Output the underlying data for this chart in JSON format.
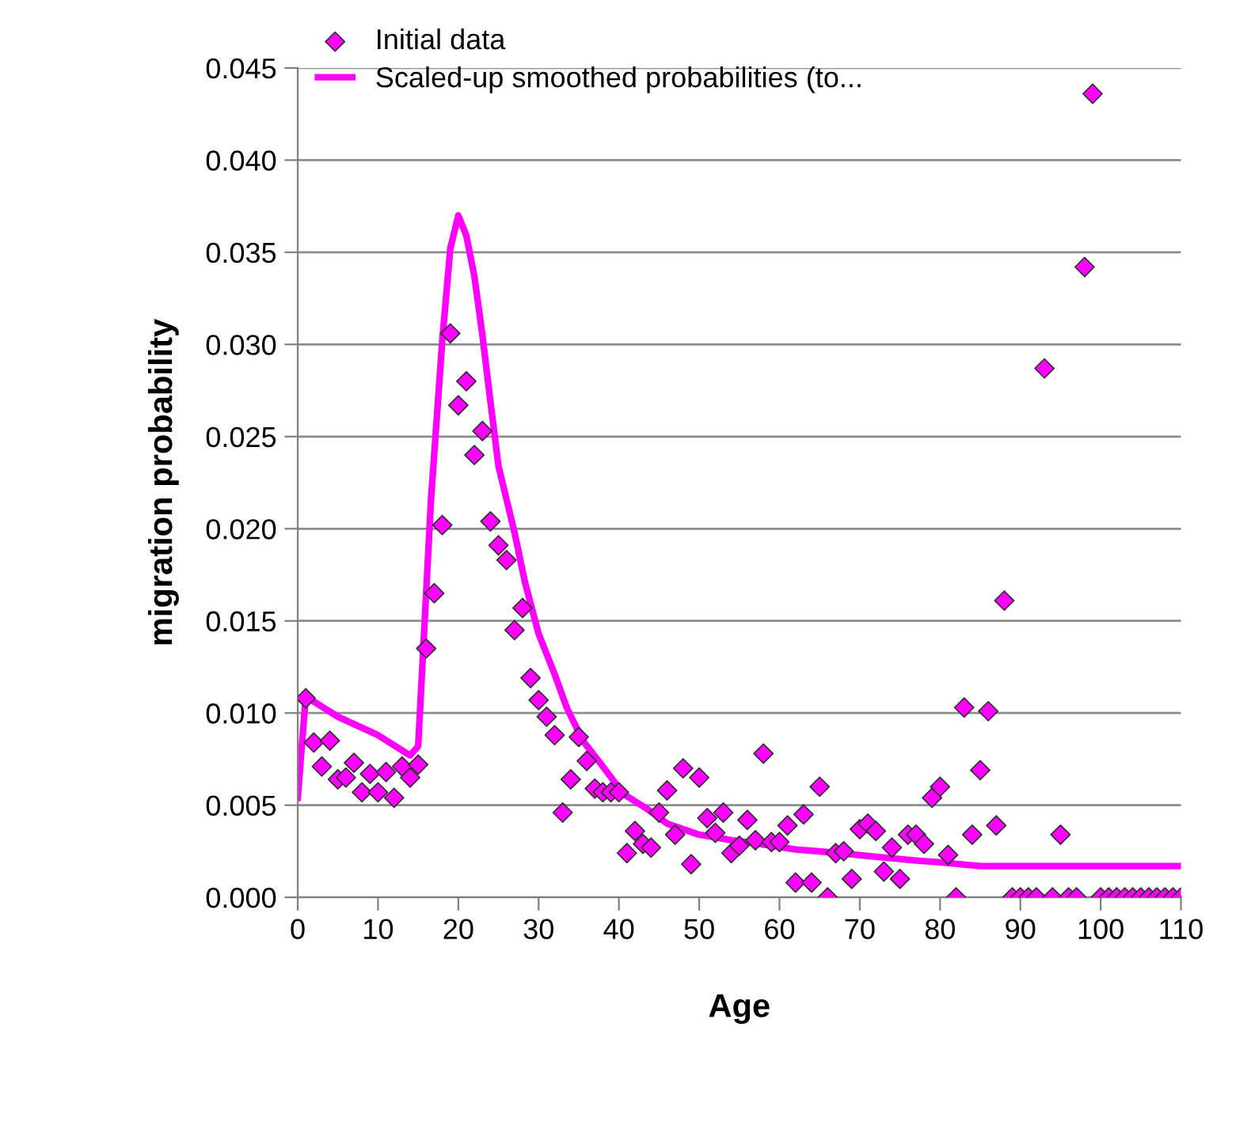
{
  "chart_data": {
    "type": "scatter",
    "xlabel": "Age",
    "ylabel": "migration probability",
    "xlim": [
      0,
      110
    ],
    "xticks": [
      0,
      10,
      20,
      30,
      40,
      50,
      60,
      70,
      80,
      90,
      100,
      110
    ],
    "ylim": [
      0,
      0.045
    ],
    "yticks": [
      {
        "value": 0,
        "label": "0.000"
      },
      {
        "value": 0.005,
        "label": "0.005"
      },
      {
        "value": 0.01,
        "label": "0.010"
      },
      {
        "value": 0.015,
        "label": "0.015"
      },
      {
        "value": 0.02,
        "label": "0.020"
      },
      {
        "value": 0.025,
        "label": "0.025"
      },
      {
        "value": 0.03,
        "label": "0.030"
      },
      {
        "value": 0.035,
        "label": "0.035"
      },
      {
        "value": 0.04,
        "label": "0.040"
      },
      {
        "value": 0.045,
        "label": "0.045"
      }
    ],
    "grid": "y",
    "legend": "top left",
    "marker": "diamond",
    "series": [
      {
        "name": "Initial data",
        "color": "#ff00ff",
        "x": [
          1,
          2,
          3,
          4,
          5,
          6,
          7,
          8,
          9,
          10,
          11,
          12,
          13,
          14,
          15,
          16,
          17,
          18,
          19,
          20,
          21,
          22,
          23,
          24,
          25,
          26,
          27,
          28,
          29,
          30,
          31,
          32,
          33,
          34,
          35,
          36,
          37,
          38,
          39,
          40,
          41,
          42,
          43,
          44,
          45,
          46,
          47,
          48,
          49,
          50,
          51,
          52,
          53,
          54,
          55,
          56,
          57,
          58,
          59,
          60,
          61,
          62,
          63,
          64,
          65,
          66,
          67,
          68,
          69,
          70,
          71,
          72,
          73,
          74,
          75,
          76,
          77,
          78,
          79,
          80,
          81,
          82,
          83,
          84,
          85,
          86,
          87,
          88,
          89,
          90,
          91,
          92,
          93,
          94,
          95,
          96,
          97,
          98,
          99,
          100,
          101,
          102,
          103,
          104,
          105,
          106,
          107,
          108,
          109,
          110
        ],
        "values": [
          0.0108,
          0.0084,
          0.0071,
          0.0085,
          0.0064,
          0.0065,
          0.0073,
          0.0057,
          0.0067,
          0.0057,
          0.0068,
          0.0054,
          0.0071,
          0.0065,
          0.0072,
          0.0135,
          0.0165,
          0.0202,
          0.0306,
          0.0267,
          0.028,
          0.024,
          0.0253,
          0.0204,
          0.0191,
          0.0183,
          0.0145,
          0.0157,
          0.0119,
          0.0107,
          0.0098,
          0.0088,
          0.0046,
          0.0064,
          0.0087,
          0.0074,
          0.0059,
          0.0057,
          0.0057,
          0.0057,
          0.0024,
          0.0036,
          0.0029,
          0.0027,
          0.0046,
          0.0058,
          0.0034,
          0.007,
          0.0018,
          0.0065,
          0.0043,
          0.0035,
          0.0046,
          0.0024,
          0.0028,
          0.0042,
          0.0031,
          0.0078,
          0.003,
          0.003,
          0.0039,
          0.0008,
          0.0045,
          0.0008,
          0.006,
          0.0,
          0.0024,
          0.0025,
          0.001,
          0.0037,
          0.004,
          0.0036,
          0.0014,
          0.0027,
          0.001,
          0.0034,
          0.0034,
          0.0029,
          0.0054,
          0.006,
          0.0023,
          0.0,
          0.0103,
          0.0034,
          0.0069,
          0.0101,
          0.0039,
          0.0161,
          0.0,
          0.0,
          0.0,
          0.0,
          0.0287,
          0.0,
          0.0034,
          0.0,
          0.0,
          0.0342,
          0.0436,
          0.0,
          0.0,
          0.0,
          0.0,
          0.0,
          0.0,
          0.0,
          0.0,
          0.0,
          0.0,
          0.0
        ]
      },
      {
        "name": "Scaled-up smoothed probabilities (to...",
        "type": "line",
        "marker": "none",
        "color": "#ff00ff",
        "x": [
          0,
          1,
          5,
          10,
          14,
          15,
          16.6,
          18,
          19,
          20,
          21,
          22,
          23,
          24,
          25,
          27,
          28.3,
          30,
          32,
          33.5,
          35.5,
          38,
          40.6,
          43.5,
          46,
          50,
          54,
          57.5,
          62,
          67.5,
          72,
          77,
          80,
          85,
          90,
          100,
          110
        ],
        "values": [
          0.0054,
          0.0109,
          0.0098,
          0.0088,
          0.0077,
          0.0082,
          0.0216,
          0.0302,
          0.0352,
          0.037,
          0.0359,
          0.0337,
          0.0305,
          0.0269,
          0.0234,
          0.0198,
          0.0171,
          0.0143,
          0.0121,
          0.0103,
          0.0085,
          0.0071,
          0.0056,
          0.0048,
          0.004,
          0.0034,
          0.0031,
          0.0029,
          0.0026,
          0.0024,
          0.0022,
          0.002,
          0.0019,
          0.0017,
          0.0017,
          0.0017,
          0.0017
        ]
      }
    ]
  }
}
